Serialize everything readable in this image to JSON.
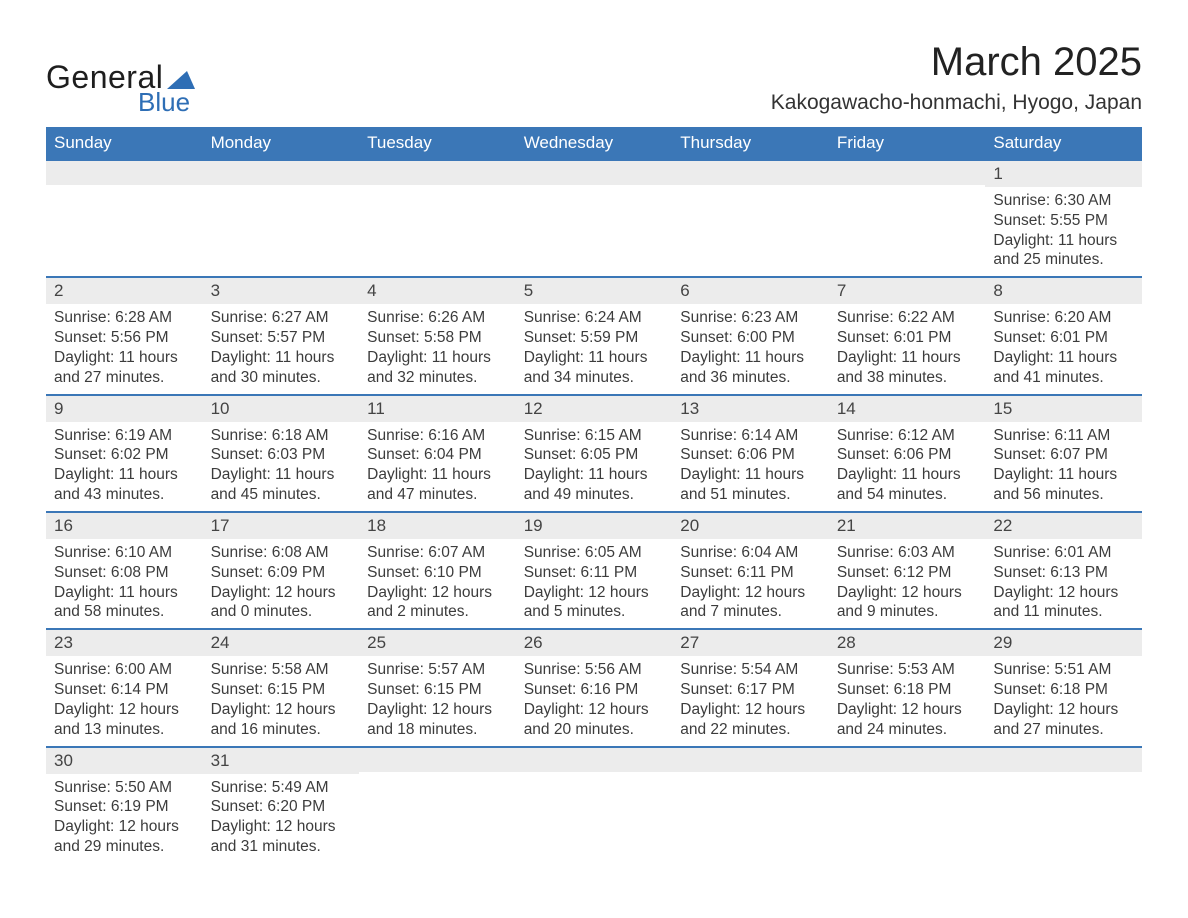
{
  "brand": {
    "general": "General",
    "blue": "Blue",
    "accent": "#2e6eb5"
  },
  "title": "March 2025",
  "location": "Kakogawacho-honmachi, Hyogo, Japan",
  "day_headers": [
    "Sunday",
    "Monday",
    "Tuesday",
    "Wednesday",
    "Thursday",
    "Friday",
    "Saturday"
  ],
  "colors": {
    "header_bg": "#3b77b7",
    "header_fg": "#ffffff",
    "daynum_bg": "#ececec",
    "row_border": "#3b77b7",
    "text": "#3c3c3c"
  },
  "weeks": [
    [
      null,
      null,
      null,
      null,
      null,
      null,
      {
        "n": "1",
        "sunrise": "Sunrise: 6:30 AM",
        "sunset": "Sunset: 5:55 PM",
        "dl1": "Daylight: 11 hours",
        "dl2": "and 25 minutes."
      }
    ],
    [
      {
        "n": "2",
        "sunrise": "Sunrise: 6:28 AM",
        "sunset": "Sunset: 5:56 PM",
        "dl1": "Daylight: 11 hours",
        "dl2": "and 27 minutes."
      },
      {
        "n": "3",
        "sunrise": "Sunrise: 6:27 AM",
        "sunset": "Sunset: 5:57 PM",
        "dl1": "Daylight: 11 hours",
        "dl2": "and 30 minutes."
      },
      {
        "n": "4",
        "sunrise": "Sunrise: 6:26 AM",
        "sunset": "Sunset: 5:58 PM",
        "dl1": "Daylight: 11 hours",
        "dl2": "and 32 minutes."
      },
      {
        "n": "5",
        "sunrise": "Sunrise: 6:24 AM",
        "sunset": "Sunset: 5:59 PM",
        "dl1": "Daylight: 11 hours",
        "dl2": "and 34 minutes."
      },
      {
        "n": "6",
        "sunrise": "Sunrise: 6:23 AM",
        "sunset": "Sunset: 6:00 PM",
        "dl1": "Daylight: 11 hours",
        "dl2": "and 36 minutes."
      },
      {
        "n": "7",
        "sunrise": "Sunrise: 6:22 AM",
        "sunset": "Sunset: 6:01 PM",
        "dl1": "Daylight: 11 hours",
        "dl2": "and 38 minutes."
      },
      {
        "n": "8",
        "sunrise": "Sunrise: 6:20 AM",
        "sunset": "Sunset: 6:01 PM",
        "dl1": "Daylight: 11 hours",
        "dl2": "and 41 minutes."
      }
    ],
    [
      {
        "n": "9",
        "sunrise": "Sunrise: 6:19 AM",
        "sunset": "Sunset: 6:02 PM",
        "dl1": "Daylight: 11 hours",
        "dl2": "and 43 minutes."
      },
      {
        "n": "10",
        "sunrise": "Sunrise: 6:18 AM",
        "sunset": "Sunset: 6:03 PM",
        "dl1": "Daylight: 11 hours",
        "dl2": "and 45 minutes."
      },
      {
        "n": "11",
        "sunrise": "Sunrise: 6:16 AM",
        "sunset": "Sunset: 6:04 PM",
        "dl1": "Daylight: 11 hours",
        "dl2": "and 47 minutes."
      },
      {
        "n": "12",
        "sunrise": "Sunrise: 6:15 AM",
        "sunset": "Sunset: 6:05 PM",
        "dl1": "Daylight: 11 hours",
        "dl2": "and 49 minutes."
      },
      {
        "n": "13",
        "sunrise": "Sunrise: 6:14 AM",
        "sunset": "Sunset: 6:06 PM",
        "dl1": "Daylight: 11 hours",
        "dl2": "and 51 minutes."
      },
      {
        "n": "14",
        "sunrise": "Sunrise: 6:12 AM",
        "sunset": "Sunset: 6:06 PM",
        "dl1": "Daylight: 11 hours",
        "dl2": "and 54 minutes."
      },
      {
        "n": "15",
        "sunrise": "Sunrise: 6:11 AM",
        "sunset": "Sunset: 6:07 PM",
        "dl1": "Daylight: 11 hours",
        "dl2": "and 56 minutes."
      }
    ],
    [
      {
        "n": "16",
        "sunrise": "Sunrise: 6:10 AM",
        "sunset": "Sunset: 6:08 PM",
        "dl1": "Daylight: 11 hours",
        "dl2": "and 58 minutes."
      },
      {
        "n": "17",
        "sunrise": "Sunrise: 6:08 AM",
        "sunset": "Sunset: 6:09 PM",
        "dl1": "Daylight: 12 hours",
        "dl2": "and 0 minutes."
      },
      {
        "n": "18",
        "sunrise": "Sunrise: 6:07 AM",
        "sunset": "Sunset: 6:10 PM",
        "dl1": "Daylight: 12 hours",
        "dl2": "and 2 minutes."
      },
      {
        "n": "19",
        "sunrise": "Sunrise: 6:05 AM",
        "sunset": "Sunset: 6:11 PM",
        "dl1": "Daylight: 12 hours",
        "dl2": "and 5 minutes."
      },
      {
        "n": "20",
        "sunrise": "Sunrise: 6:04 AM",
        "sunset": "Sunset: 6:11 PM",
        "dl1": "Daylight: 12 hours",
        "dl2": "and 7 minutes."
      },
      {
        "n": "21",
        "sunrise": "Sunrise: 6:03 AM",
        "sunset": "Sunset: 6:12 PM",
        "dl1": "Daylight: 12 hours",
        "dl2": "and 9 minutes."
      },
      {
        "n": "22",
        "sunrise": "Sunrise: 6:01 AM",
        "sunset": "Sunset: 6:13 PM",
        "dl1": "Daylight: 12 hours",
        "dl2": "and 11 minutes."
      }
    ],
    [
      {
        "n": "23",
        "sunrise": "Sunrise: 6:00 AM",
        "sunset": "Sunset: 6:14 PM",
        "dl1": "Daylight: 12 hours",
        "dl2": "and 13 minutes."
      },
      {
        "n": "24",
        "sunrise": "Sunrise: 5:58 AM",
        "sunset": "Sunset: 6:15 PM",
        "dl1": "Daylight: 12 hours",
        "dl2": "and 16 minutes."
      },
      {
        "n": "25",
        "sunrise": "Sunrise: 5:57 AM",
        "sunset": "Sunset: 6:15 PM",
        "dl1": "Daylight: 12 hours",
        "dl2": "and 18 minutes."
      },
      {
        "n": "26",
        "sunrise": "Sunrise: 5:56 AM",
        "sunset": "Sunset: 6:16 PM",
        "dl1": "Daylight: 12 hours",
        "dl2": "and 20 minutes."
      },
      {
        "n": "27",
        "sunrise": "Sunrise: 5:54 AM",
        "sunset": "Sunset: 6:17 PM",
        "dl1": "Daylight: 12 hours",
        "dl2": "and 22 minutes."
      },
      {
        "n": "28",
        "sunrise": "Sunrise: 5:53 AM",
        "sunset": "Sunset: 6:18 PM",
        "dl1": "Daylight: 12 hours",
        "dl2": "and 24 minutes."
      },
      {
        "n": "29",
        "sunrise": "Sunrise: 5:51 AM",
        "sunset": "Sunset: 6:18 PM",
        "dl1": "Daylight: 12 hours",
        "dl2": "and 27 minutes."
      }
    ],
    [
      {
        "n": "30",
        "sunrise": "Sunrise: 5:50 AM",
        "sunset": "Sunset: 6:19 PM",
        "dl1": "Daylight: 12 hours",
        "dl2": "and 29 minutes."
      },
      {
        "n": "31",
        "sunrise": "Sunrise: 5:49 AM",
        "sunset": "Sunset: 6:20 PM",
        "dl1": "Daylight: 12 hours",
        "dl2": "and 31 minutes."
      },
      null,
      null,
      null,
      null,
      null
    ]
  ]
}
